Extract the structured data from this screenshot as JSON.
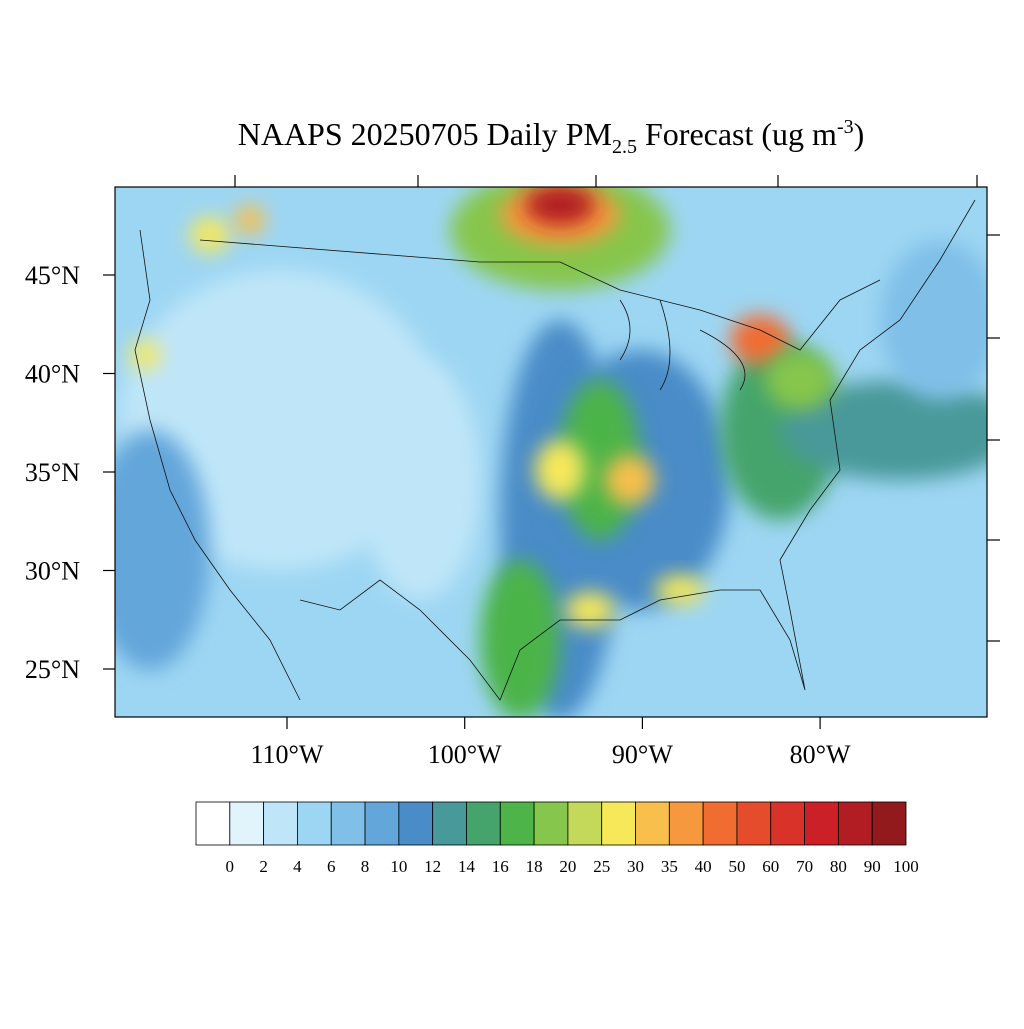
{
  "map": {
    "title": {
      "main": "NAAPS 20250705 Daily PM",
      "subscript": "2.5",
      "rest": " Forecast (ug m",
      "superscript": "-3",
      "end": ")"
    },
    "lat_ticks": [
      {
        "value": 45,
        "label": "45°N"
      },
      {
        "value": 40,
        "label": "40°N"
      },
      {
        "value": 35,
        "label": "35°N"
      },
      {
        "value": 30,
        "label": "30°N"
      },
      {
        "value": 25,
        "label": "25°N"
      }
    ],
    "lon_ticks": [
      {
        "value": -110,
        "label": "110°W"
      },
      {
        "value": -100,
        "label": "100°W"
      },
      {
        "value": -90,
        "label": "90°W"
      },
      {
        "value": -80,
        "label": "80°W"
      }
    ],
    "colorbar": {
      "levels": [
        0,
        2,
        4,
        6,
        8,
        10,
        12,
        14,
        16,
        18,
        20,
        25,
        30,
        35,
        40,
        50,
        60,
        70,
        80,
        90,
        100
      ],
      "colors": [
        "#ffffff",
        "#e1f3fb",
        "#bfe6f8",
        "#9dd6f3",
        "#7fbfe8",
        "#63a6da",
        "#4a8cc8",
        "#48999a",
        "#44a46c",
        "#4cb449",
        "#86c64c",
        "#c4d95a",
        "#f7e85a",
        "#f8bf4c",
        "#f6983e",
        "#f16c30",
        "#e44c2c",
        "#d93229",
        "#cb2028",
        "#b11d23",
        "#921a1c"
      ]
    }
  }
}
